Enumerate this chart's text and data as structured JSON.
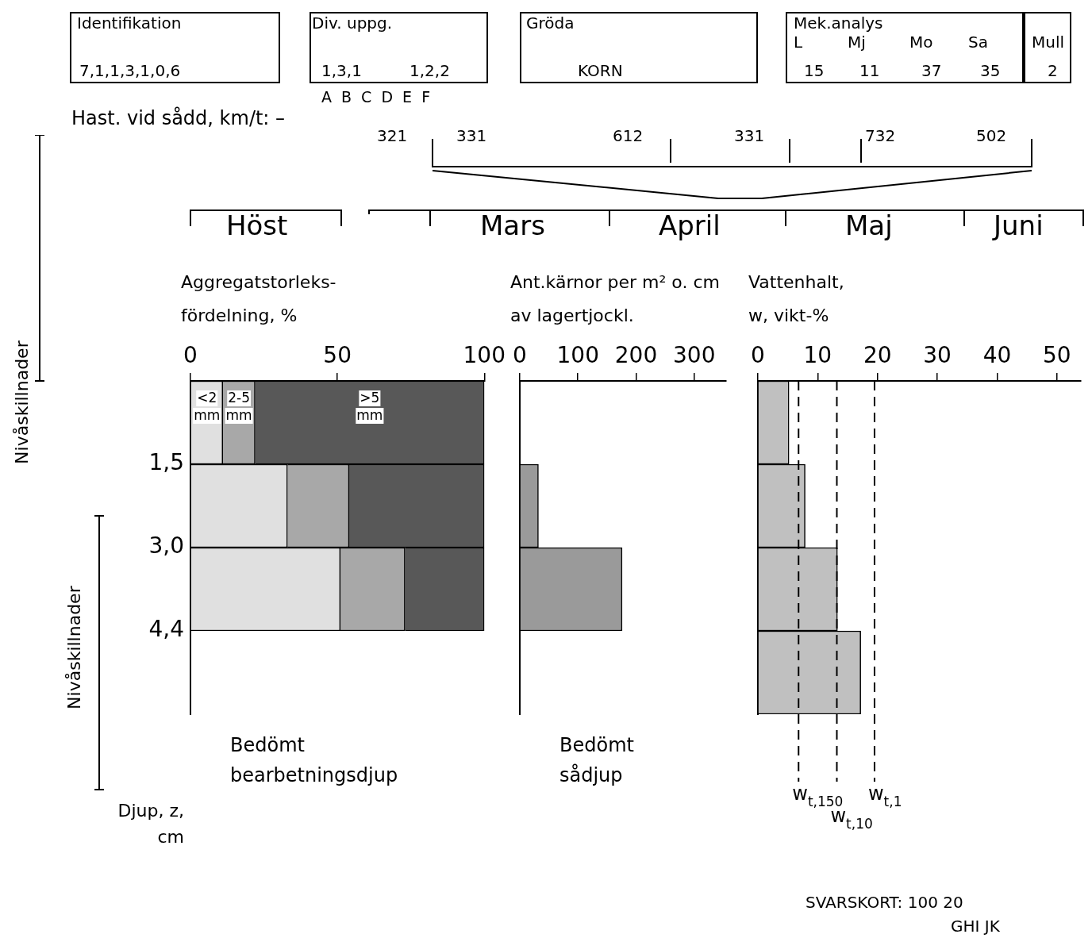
{
  "chart_data": [
    {
      "type": "other",
      "annotations": [
        "Identifikation",
        "7,1,1,3,1,0,6",
        "Div. uppg.",
        "1,3,1",
        "1,2,2",
        "A B C D E F",
        "Gröda",
        "KORN",
        "Mek.analys",
        "L",
        "Mj",
        "Mo",
        "Sa",
        "Mull",
        "15",
        "11",
        "37",
        "35",
        "2",
        "Hast. vid sådd, km/t: –",
        "321",
        "331",
        "612",
        "331",
        "732",
        "502",
        "Höst",
        "Mars",
        "April",
        "Maj",
        "Juni",
        "Nivåskillnader",
        "Nivåskillnader",
        "SVARSKORT: 100 20",
        "GHI JK"
      ]
    },
    {
      "type": "bar",
      "orientation": "horizontal",
      "stacked": true,
      "categories": [
        "1,5",
        "3,0",
        "4,4",
        null
      ],
      "xlim": [
        0,
        100
      ],
      "xticks": [
        0,
        50,
        100
      ],
      "xlabel": "Aggregatstorleks-fördelning, %",
      "ylabel": "Djup, z, cm",
      "annotations": [
        "Bedömt bearbetningsdjup"
      ],
      "series": [
        {
          "name": "<2 mm",
          "color": "#e0e0e0",
          "values": [
            11,
            33,
            51,
            null
          ]
        },
        {
          "name": "2-5 mm",
          "color": "#a8a8a8",
          "values": [
            11,
            21,
            22,
            null
          ]
        },
        {
          "name": ">5 mm",
          "color": "#585858",
          "values": [
            78,
            46,
            27,
            null
          ]
        }
      ]
    },
    {
      "type": "bar",
      "orientation": "horizontal",
      "categories": [
        "1,5",
        "3,0",
        "4,4",
        null
      ],
      "tick_labels": "x",
      "xlim": [
        0,
        355
      ],
      "xticks": [
        0,
        100,
        200,
        300
      ],
      "xlabel": "Ant.kärnor per m² o. cm av lagertjockl.",
      "annotations": [
        "Bedömt sådjup"
      ],
      "series": [
        {
          "color": "#9a9a9a",
          "values": [
            0,
            32,
            176,
            null
          ]
        }
      ]
    },
    {
      "type": "bar",
      "orientation": "horizontal",
      "categories": [
        "1,5",
        "3,0",
        "4,4",
        null
      ],
      "tick_labels": "x",
      "xlim": [
        0,
        54
      ],
      "xticks": [
        0,
        10,
        20,
        30,
        40,
        50
      ],
      "xlabel": "Vattenhalt, w, vikt-%",
      "series": [
        {
          "color": "#c0c0c0",
          "values": [
            5.2,
            7.9,
            13.3,
            17.2
          ]
        }
      ],
      "ref_lines": [
        {
          "axis": "x",
          "value": 6.8,
          "label": "w$_{t,150}$",
          "color": "#000000",
          "line_style": "dashed"
        },
        {
          "axis": "x",
          "value": 13.2,
          "label": "w$_{t,10}$",
          "color": "#000000",
          "line_style": "dashed"
        },
        {
          "axis": "x",
          "value": 19.5,
          "label": "w$_{t,1}$",
          "color": "#000000",
          "line_style": "dashed"
        }
      ]
    }
  ]
}
